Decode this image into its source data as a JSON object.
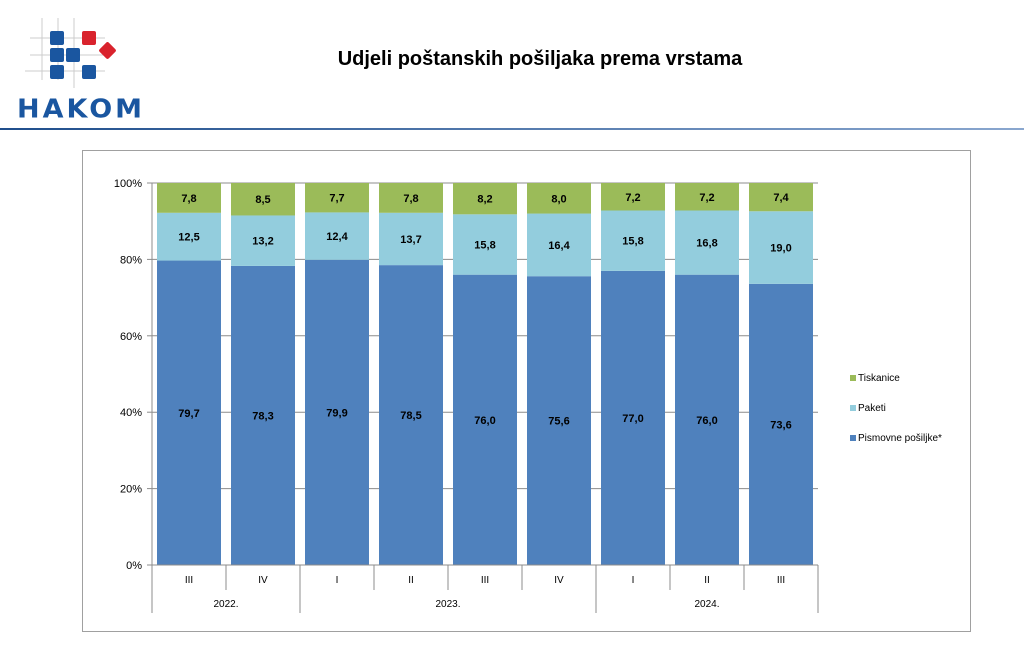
{
  "header": {
    "logo_text": "HAKOM",
    "title": "Udjeli poštanskih pošiljaka prema vrstama"
  },
  "chart_data": {
    "type": "bar",
    "stacked": "percent",
    "title": "",
    "categories": [
      "III",
      "IV",
      "I",
      "II",
      "III",
      "IV",
      "I",
      "II",
      "III"
    ],
    "groups": [
      {
        "label": "2022.",
        "span": 2
      },
      {
        "label": "2023.",
        "span": 4
      },
      {
        "label": "2024.",
        "span": 3
      }
    ],
    "series": [
      {
        "name": "Pismovne pošiljke*",
        "color": "#4f81bd",
        "values": [
          79.7,
          78.3,
          79.9,
          78.5,
          76.0,
          75.6,
          77.0,
          76.0,
          73.6
        ],
        "labels": [
          "79,7",
          "78,3",
          "79,9",
          "78,5",
          "76,0",
          "75,6",
          "77,0",
          "76,0",
          "73,6"
        ]
      },
      {
        "name": "Paketi",
        "color": "#93cddd",
        "values": [
          12.5,
          13.2,
          12.4,
          13.7,
          15.8,
          16.4,
          15.8,
          16.8,
          19.0
        ],
        "labels": [
          "12,5",
          "13,2",
          "12,4",
          "13,7",
          "15,8",
          "16,4",
          "15,8",
          "16,8",
          "19,0"
        ]
      },
      {
        "name": "Tiskanice",
        "color": "#9bbb59",
        "values": [
          7.8,
          8.5,
          7.7,
          7.8,
          8.2,
          8.0,
          7.2,
          7.2,
          7.4
        ],
        "labels": [
          "7,8",
          "8,5",
          "7,7",
          "7,8",
          "8,2",
          "8,0",
          "7,2",
          "7,2",
          "7,4"
        ]
      }
    ],
    "yticks": [
      "0%",
      "20%",
      "40%",
      "60%",
      "80%",
      "100%"
    ],
    "ylim": [
      0,
      100
    ],
    "grid": true,
    "legend": "right"
  }
}
